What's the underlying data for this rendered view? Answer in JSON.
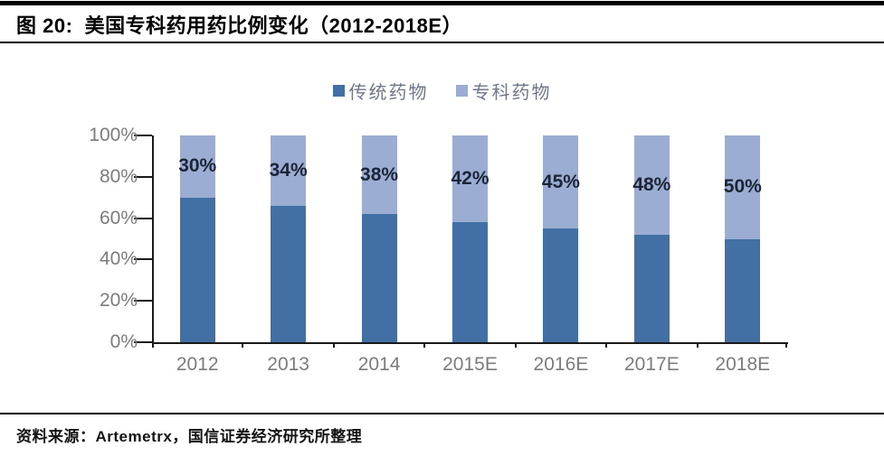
{
  "figure": {
    "title": "图 20:  美国专科药用药比例变化（2012-2018E）",
    "source": "资料来源：Artemetrx，国信证券经济研究所整理"
  },
  "chart_data": {
    "type": "bar",
    "subtype": "stacked-100-percent",
    "title": "美国专科药用药比例变化（2012-2018E）",
    "categories": [
      "2012",
      "2013",
      "2014",
      "2015E",
      "2016E",
      "2017E",
      "2018E"
    ],
    "series": [
      {
        "name": "传统药物",
        "color": "#4270A5",
        "values": [
          70,
          66,
          62,
          58,
          55,
          52,
          50
        ]
      },
      {
        "name": "专科药物",
        "color": "#9BADD2",
        "values": [
          30,
          34,
          38,
          42,
          45,
          48,
          50
        ]
      }
    ],
    "data_labels": [
      "30%",
      "34%",
      "38%",
      "42%",
      "45%",
      "48%",
      "50%"
    ],
    "data_labels_series": "专科药物",
    "y_ticks": [
      "0%",
      "20%",
      "40%",
      "60%",
      "80%",
      "100%"
    ],
    "y_tick_values": [
      0,
      20,
      40,
      60,
      80,
      100
    ],
    "ylim": [
      0,
      100
    ],
    "legend_position": "top",
    "grid": false,
    "colors": {
      "axis": "#1A1A1A",
      "tick_label": "#7C7C7C",
      "data_label": "#1C2538",
      "legend_text": "#6F7888"
    }
  }
}
